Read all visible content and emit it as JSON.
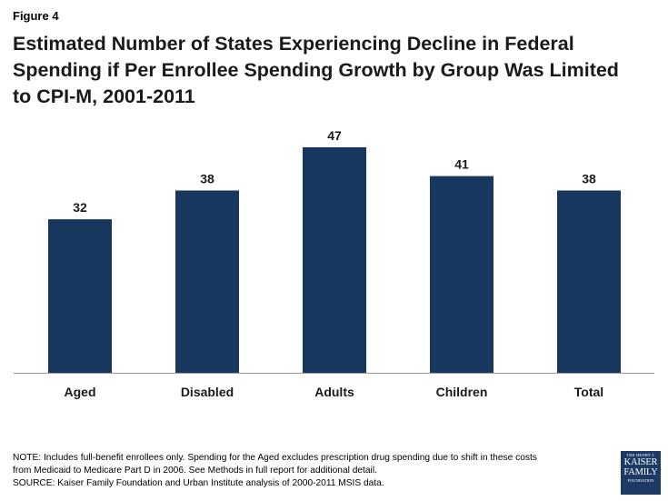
{
  "figure_label": "Figure 4",
  "title": "Estimated Number of States Experiencing Decline in Federal Spending if Per Enrollee Spending Growth by Group Was Limited to CPI-M, 2001-2011",
  "chart_data": {
    "type": "bar",
    "categories": [
      "Aged",
      "Disabled",
      "Adults",
      "Children",
      "Total"
    ],
    "values": [
      32,
      38,
      47,
      41,
      38
    ],
    "title": "Estimated Number of States Experiencing Decline in Federal Spending if Per Enrollee Spending Growth by Group Was Limited to CPI-M, 2001-2011",
    "xlabel": "",
    "ylabel": "",
    "ylim": [
      0,
      47
    ],
    "data_labels": true,
    "grid": false,
    "legend": "none",
    "bar_color": "#17375e"
  },
  "notes": [
    "NOTE: Includes full-benefit enrollees only. Spending for the Aged excludes prescription drug spending due to shift in these costs",
    "from Medicaid to Medicare Part D in 2006. See Methods in full report for additional detail.",
    "SOURCE: Kaiser Family Foundation  and Urban Institute  analysis of 2000-2011 MSIS data."
  ],
  "logo": {
    "line1": "THE HENRY J.",
    "line2": "KAISER",
    "line3": "FAMILY",
    "line4": "FOUNDATION",
    "color": "#1c3a63"
  }
}
